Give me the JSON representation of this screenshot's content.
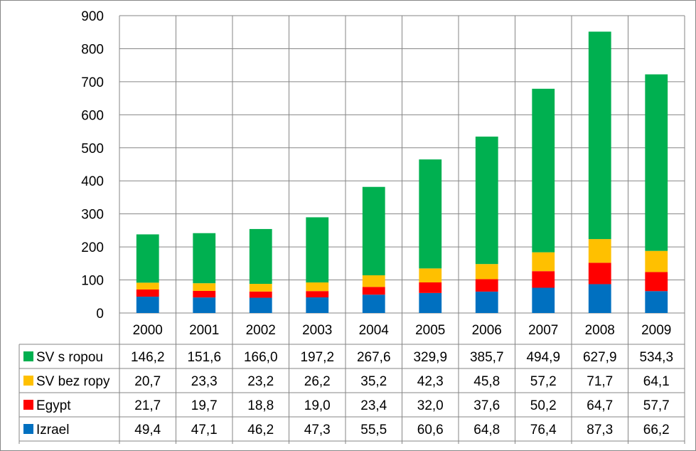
{
  "chart_data": {
    "type": "bar",
    "stacked": true,
    "categories": [
      "2000",
      "2001",
      "2002",
      "2003",
      "2004",
      "2005",
      "2006",
      "2007",
      "2008",
      "2009"
    ],
    "ylim": [
      0,
      900
    ],
    "yticks": [
      "0",
      "100",
      "200",
      "300",
      "400",
      "500",
      "600",
      "700",
      "800",
      "900"
    ],
    "grid": true,
    "legend": "data-table",
    "series": [
      {
        "name": "Izrael",
        "color": "#0070C0",
        "values": [
          49.4,
          47.1,
          46.2,
          47.3,
          55.5,
          60.6,
          64.8,
          76.4,
          87.3,
          66.2
        ],
        "labels": [
          "49,4",
          "47,1",
          "46,2",
          "47,3",
          "55,5",
          "60,6",
          "64,8",
          "76,4",
          "87,3",
          "66,2"
        ]
      },
      {
        "name": "Egypt",
        "color": "#FF0000",
        "values": [
          21.7,
          19.7,
          18.8,
          19.0,
          23.4,
          32.0,
          37.6,
          50.2,
          64.7,
          57.7
        ],
        "labels": [
          "21,7",
          "19,7",
          "18,8",
          "19,0",
          "23,4",
          "32,0",
          "37,6",
          "50,2",
          "64,7",
          "57,7"
        ]
      },
      {
        "name": "SV bez ropy",
        "color": "#FFC000",
        "values": [
          20.7,
          23.3,
          23.2,
          26.2,
          35.2,
          42.3,
          45.8,
          57.2,
          71.7,
          64.1
        ],
        "labels": [
          "20,7",
          "23,3",
          "23,2",
          "26,2",
          "35,2",
          "42,3",
          "45,8",
          "57,2",
          "71,7",
          "64,1"
        ]
      },
      {
        "name": "SV s ropou",
        "color": "#00B050",
        "values": [
          146.2,
          151.6,
          166.0,
          197.2,
          267.6,
          329.9,
          385.7,
          494.9,
          627.9,
          534.3
        ],
        "labels": [
          "146,2",
          "151,6",
          "166,0",
          "197,2",
          "267,6",
          "329,9",
          "385,7",
          "494,9",
          "627,9",
          "534,3"
        ]
      }
    ],
    "table_row_order": [
      "SV s ropou",
      "SV bez ropy",
      "Egypt",
      "Izrael"
    ]
  }
}
